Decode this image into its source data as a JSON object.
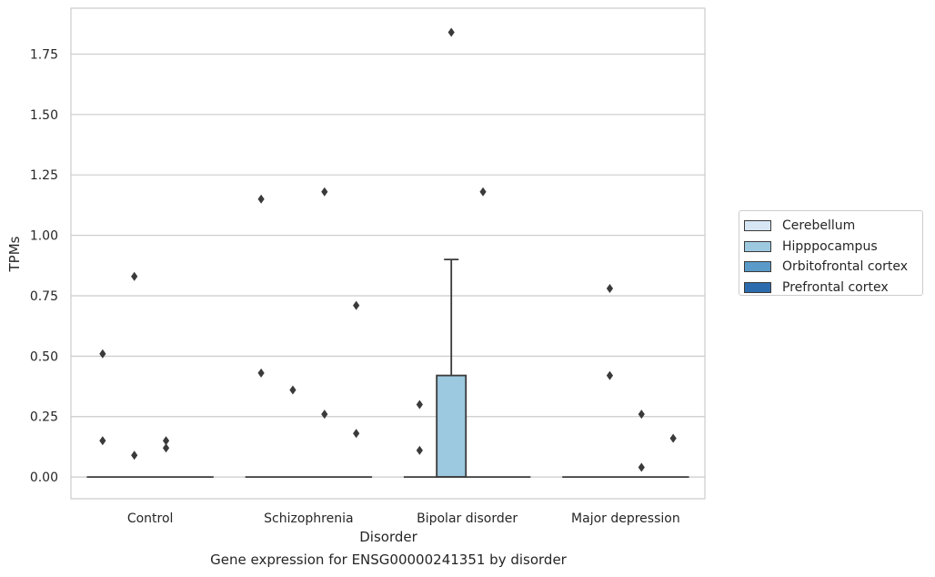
{
  "figure": {
    "caption": "Gene expression for ENSG00000241351 by disorder"
  },
  "chart_data": {
    "type": "box",
    "xlabel": "Disorder",
    "ylabel": "TPMs",
    "categories": [
      "Control",
      "Schizophrenia",
      "Bipolar disorder",
      "Major depression"
    ],
    "ylim": [
      -0.09,
      1.94
    ],
    "yticks": [
      0.0,
      0.25,
      0.5,
      0.75,
      1.0,
      1.25,
      1.5,
      1.75
    ],
    "ytick_labels": [
      "0.00",
      "0.25",
      "0.50",
      "0.75",
      "1.00",
      "1.25",
      "1.50",
      "1.75"
    ],
    "grid": true,
    "legend_position": "right",
    "series": [
      {
        "name": "Cerebellum",
        "color": "#d6e6f4"
      },
      {
        "name": "Hipppocampus",
        "color": "#9cc9e0"
      },
      {
        "name": "Orbitofrontal cortex",
        "color": "#5a9ac8"
      },
      {
        "name": "Prefrontal cortex",
        "color": "#2c6cad"
      }
    ],
    "boxes": [
      {
        "category": "Control",
        "series": "Hipppocampus",
        "q1": 0.0,
        "median": 0.0,
        "q3": 0.0,
        "whisker_low": 0.0,
        "whisker_high": 0.0
      },
      {
        "category": "Schizophrenia",
        "series": "Hipppocampus",
        "q1": 0.0,
        "median": 0.0,
        "q3": 0.0,
        "whisker_low": 0.0,
        "whisker_high": 0.0
      },
      {
        "category": "Bipolar disorder",
        "series": "Hipppocampus",
        "q1": 0.0,
        "median": 0.0,
        "q3": 0.42,
        "whisker_low": 0.0,
        "whisker_high": 0.9
      },
      {
        "category": "Major depression",
        "series": "Hipppocampus",
        "q1": 0.0,
        "median": 0.0,
        "q3": 0.0,
        "whisker_low": 0.0,
        "whisker_high": 0.0
      }
    ],
    "outliers": [
      {
        "category": "Control",
        "series": "Cerebellum",
        "values": [
          0.51,
          0.15
        ]
      },
      {
        "category": "Control",
        "series": "Hipppocampus",
        "values": [
          0.83,
          0.09
        ]
      },
      {
        "category": "Control",
        "series": "Orbitofrontal cortex",
        "values": [
          0.15,
          0.12
        ]
      },
      {
        "category": "Schizophrenia",
        "series": "Cerebellum",
        "values": [
          1.15,
          0.43
        ]
      },
      {
        "category": "Schizophrenia",
        "series": "Hipppocampus",
        "values": [
          0.36
        ]
      },
      {
        "category": "Schizophrenia",
        "series": "Orbitofrontal cortex",
        "values": [
          1.18,
          0.26
        ]
      },
      {
        "category": "Schizophrenia",
        "series": "Prefrontal cortex",
        "values": [
          0.71,
          0.18
        ]
      },
      {
        "category": "Bipolar disorder",
        "series": "Cerebellum",
        "values": [
          0.3,
          0.11
        ]
      },
      {
        "category": "Bipolar disorder",
        "series": "Hipppocampus",
        "values": [
          1.84
        ]
      },
      {
        "category": "Bipolar disorder",
        "series": "Orbitofrontal cortex",
        "values": [
          1.18
        ]
      },
      {
        "category": "Major depression",
        "series": "Hipppocampus",
        "values": [
          0.78,
          0.42
        ]
      },
      {
        "category": "Major depression",
        "series": "Orbitofrontal cortex",
        "values": [
          0.26,
          0.04
        ]
      },
      {
        "category": "Major depression",
        "series": "Prefrontal cortex",
        "values": [
          0.16
        ]
      }
    ]
  }
}
